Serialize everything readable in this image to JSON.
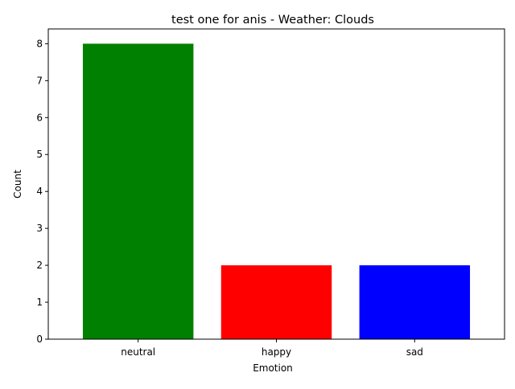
{
  "chart_data": {
    "type": "bar",
    "title": "test one for anis - Weather: Clouds",
    "xlabel": "Emotion",
    "ylabel": "Count",
    "categories": [
      "neutral",
      "happy",
      "sad"
    ],
    "values": [
      8,
      2,
      2
    ],
    "colors": [
      "#008000",
      "#ff0000",
      "#0000ff"
    ],
    "ylim": [
      0,
      8.4
    ],
    "yticks": [
      0,
      1,
      2,
      3,
      4,
      5,
      6,
      7,
      8
    ],
    "grid": false,
    "legend": "none"
  }
}
